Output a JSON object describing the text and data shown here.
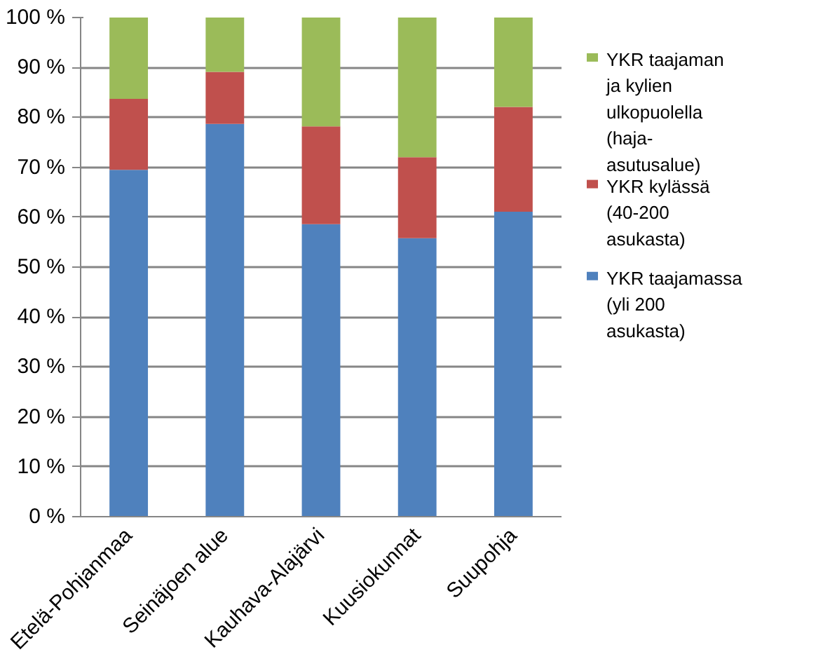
{
  "chart_data": {
    "type": "bar",
    "stacked": true,
    "categories": [
      "Etelä-Pohjanmaa",
      "Seinäjoen alue",
      "Kauhava-Alajärvi",
      "Kuusiokunnat",
      "Suupohja"
    ],
    "series": [
      {
        "name": "YKR taajamassa (yli 200 asukasta)",
        "color": "#4f81bd",
        "values": [
          69.5,
          78.7,
          58.6,
          55.8,
          61.1
        ]
      },
      {
        "name": "YKR kylässä (40-200 asukasta)",
        "color": "#c0504d",
        "values": [
          14.2,
          10.4,
          19.6,
          16.2,
          21.0
        ]
      },
      {
        "name": "YKR taajaman ja kylien ulkopuolella (haja-asutusalue)",
        "color": "#9bbb59",
        "values": [
          16.3,
          10.9,
          21.8,
          28.0,
          17.9
        ]
      }
    ],
    "ylim": [
      0,
      100
    ],
    "yticks": [
      {
        "value": 0,
        "label": "0 %"
      },
      {
        "value": 10,
        "label": "10 %"
      },
      {
        "value": 20,
        "label": "20 %"
      },
      {
        "value": 30,
        "label": "30 %"
      },
      {
        "value": 40,
        "label": "40 %"
      },
      {
        "value": 50,
        "label": "50 %"
      },
      {
        "value": 60,
        "label": "60 %"
      },
      {
        "value": 70,
        "label": "70 %"
      },
      {
        "value": 80,
        "label": "80 %"
      },
      {
        "value": 90,
        "label": "90 %"
      },
      {
        "value": 100,
        "label": "100 %"
      }
    ],
    "grid": "y",
    "legend": "right"
  }
}
